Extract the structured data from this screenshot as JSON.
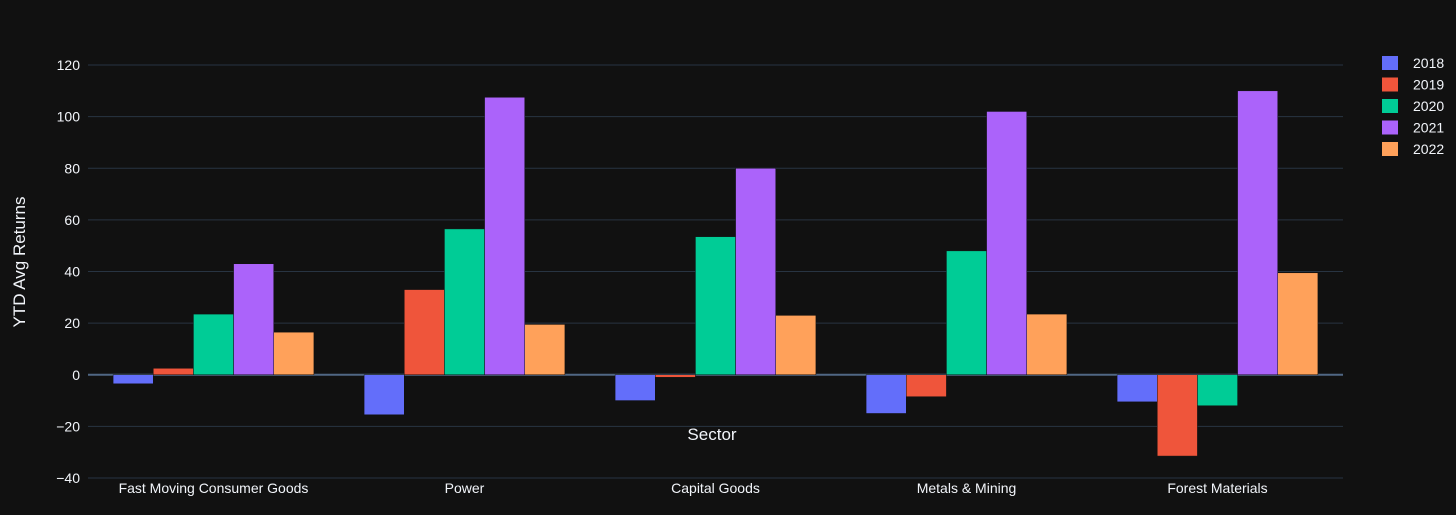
{
  "chart_data": {
    "type": "bar",
    "xlabel": "Sector",
    "ylabel": "YTD Avg Returns",
    "ylim": [
      -40,
      130
    ],
    "yticks": [
      -40,
      -20,
      0,
      20,
      40,
      60,
      80,
      100,
      120
    ],
    "ytick_labels": [
      "−40",
      "−20",
      "0",
      "20",
      "40",
      "60",
      "80",
      "100",
      "120"
    ],
    "grid": true,
    "legend_position": "top-right",
    "categories": [
      "Fast Moving Consumer Goods",
      "Power",
      "Capital Goods",
      "Metals & Mining",
      "Forest Materials"
    ],
    "series": [
      {
        "name": "2018",
        "color": "#636efa",
        "values": [
          -3.5,
          -15.5,
          -10.0,
          -15.0,
          -10.5
        ]
      },
      {
        "name": "2019",
        "color": "#ef553b",
        "values": [
          2.5,
          33.0,
          -1.0,
          -8.5,
          -31.5
        ]
      },
      {
        "name": "2020",
        "color": "#00cc96",
        "values": [
          23.5,
          56.5,
          53.5,
          48.0,
          -12.0
        ]
      },
      {
        "name": "2021",
        "color": "#ab63fa",
        "values": [
          43.0,
          107.5,
          80.0,
          102.0,
          110.0
        ]
      },
      {
        "name": "2022",
        "color": "#ffa15a",
        "values": [
          16.5,
          19.5,
          23.0,
          23.5,
          39.5
        ]
      }
    ]
  }
}
